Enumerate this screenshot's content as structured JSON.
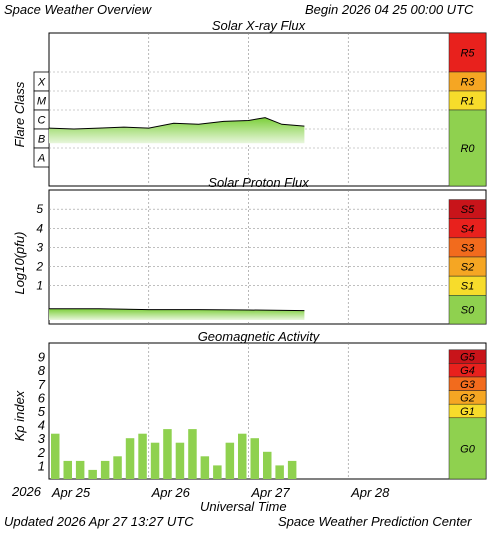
{
  "header": {
    "title": "Space Weather Overview",
    "begin": "Begin 2026 04 25 00:00 UTC"
  },
  "footer": {
    "updated": "Updated 2026 Apr 27 13:27 UTC",
    "source": "Space Weather Prediction Center"
  },
  "colors": {
    "fill_top": "#7ccf3a",
    "fill_bottom": "#e8f6dc",
    "bar": "#8fd14f",
    "scale_green": "#8fd14f",
    "scale_yellow": "#f7dc2b",
    "scale_orange": "#f5a623",
    "scale_redorange": "#f26b1d",
    "scale_red": "#e8211d",
    "scale_darkred": "#c8141a"
  },
  "chart_data": [
    {
      "type": "area",
      "title": "Solar X-ray Flux",
      "ylabel": "Flare Class",
      "y_classes": [
        "X",
        "M",
        "C",
        "B",
        "A"
      ],
      "ylim_log10_wm2": [
        -9,
        -2
      ],
      "x_start": "2026-04-25 00:00 UTC",
      "x": [
        "2026-04-25 00:00",
        "2026-04-25 06:00",
        "2026-04-25 12:00",
        "2026-04-25 18:00",
        "2026-04-26 00:00",
        "2026-04-26 06:00",
        "2026-04-26 12:00",
        "2026-04-26 18:00",
        "2026-04-27 00:00",
        "2026-04-27 04:00",
        "2026-04-27 08:00",
        "2026-04-27 13:27"
      ],
      "values_log10_wm2": [
        -5.95,
        -6.0,
        -5.95,
        -5.9,
        -5.95,
        -5.7,
        -5.75,
        -5.6,
        -5.55,
        -5.4,
        -5.75,
        -5.85
      ],
      "scale": [
        {
          "label": "R5",
          "color": "red"
        },
        {
          "label": "R3",
          "color": "orange"
        },
        {
          "label": "R1",
          "color": "yellow"
        },
        {
          "label": "R0",
          "color": "green"
        }
      ]
    },
    {
      "type": "area",
      "title": "Solar Proton Flux",
      "ylabel": "Log10(pfu)",
      "yticks": [
        "5",
        "4",
        "3",
        "2",
        "1"
      ],
      "ylim": [
        -1,
        6
      ],
      "x_start": "2026-04-25 00:00 UTC",
      "x": [
        "2026-04-25 00:00",
        "2026-04-25 12:00",
        "2026-04-26 00:00",
        "2026-04-26 12:00",
        "2026-04-27 00:00",
        "2026-04-27 13:27"
      ],
      "values": [
        -0.2,
        -0.2,
        -0.25,
        -0.25,
        -0.27,
        -0.3
      ],
      "scale": [
        {
          "label": "S5",
          "color": "darkred"
        },
        {
          "label": "S4",
          "color": "red"
        },
        {
          "label": "S3",
          "color": "redorange"
        },
        {
          "label": "S2",
          "color": "orange"
        },
        {
          "label": "S1",
          "color": "yellow"
        },
        {
          "label": "S0",
          "color": "green"
        }
      ]
    },
    {
      "type": "bar",
      "title": "Geomagnetic Activity",
      "ylabel": "Kp index",
      "yticks": [
        "9",
        "8",
        "7",
        "6",
        "5",
        "4",
        "3",
        "2",
        "1"
      ],
      "ylim": [
        0,
        10
      ],
      "period_hours": 3,
      "x_start": "2026-04-25 00:00 UTC",
      "values": [
        3.33,
        1.33,
        1.33,
        0.67,
        1.33,
        1.67,
        3.0,
        3.33,
        2.67,
        3.67,
        2.67,
        3.67,
        1.67,
        1.0,
        2.67,
        3.33,
        3.0,
        2.0,
        1.0,
        1.33
      ],
      "scale": [
        {
          "label": "G5",
          "color": "darkred"
        },
        {
          "label": "G4",
          "color": "red"
        },
        {
          "label": "G3",
          "color": "redorange"
        },
        {
          "label": "G2",
          "color": "orange"
        },
        {
          "label": "G1",
          "color": "yellow"
        },
        {
          "label": "G0",
          "color": "green"
        }
      ]
    }
  ],
  "x_axis": {
    "year": "2026",
    "ticks": [
      "Apr 25",
      "Apr 26",
      "Apr 27",
      "Apr 28"
    ],
    "label": "Universal Time"
  }
}
